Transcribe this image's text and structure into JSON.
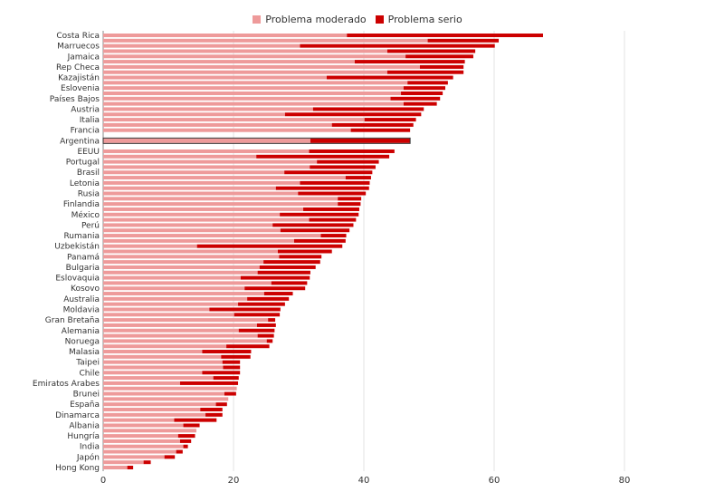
{
  "chart_data": {
    "type": "bar",
    "orientation": "horizontal",
    "stacked": true,
    "title": "",
    "xlabel": "",
    "ylabel": "",
    "xlim": [
      0,
      80
    ],
    "xticks": [
      0,
      20,
      40,
      60,
      80
    ],
    "grid": true,
    "legend_placement": "top-center",
    "highlighted_category": "Argentina",
    "categories": [
      "Costa Rica",
      "",
      "Marruecos",
      "",
      "Jamaica",
      "",
      "Rep Checa",
      "",
      "Kazajistán",
      "",
      "Eslovenia",
      "",
      "Países Bajos",
      "",
      "Austria",
      "",
      "Italia",
      "",
      "Francia",
      "Argentina",
      "EEUU",
      "",
      "Portugal",
      "",
      "Brasil",
      "",
      "Letonia",
      "",
      "Rusia",
      "",
      "Finlandia",
      "",
      "México",
      "",
      "Perú",
      "",
      "Rumania",
      "",
      "Uzbekistán",
      "",
      "Panamá",
      "",
      "Bulgaria",
      "",
      "Eslovaquia",
      "",
      "Kosovo",
      "",
      "Australia",
      "",
      "Moldavia",
      "",
      "Gran Bretaña",
      "",
      "Alemania",
      "",
      "Noruega",
      "",
      "Malasia",
      "",
      "Taipei",
      "",
      "Chile",
      "",
      "Emiratos Arabes",
      "",
      "Brunei",
      "",
      "España",
      "",
      "Dinamarca",
      "",
      "Albania",
      "",
      "Hungría",
      "",
      "India",
      "",
      "Japón",
      "",
      "Hong Kong"
    ],
    "series": [
      {
        "name": "Problema moderado",
        "color": "#ee9a9a",
        "values": [
          37.4,
          49.8,
          30.2,
          43.6,
          46.4,
          38.6,
          48.6,
          43.6,
          34.3,
          46.7,
          46.1,
          45.7,
          44.1,
          46.1,
          32.2,
          27.9,
          40.1,
          35.1,
          38.0,
          31.8,
          31.6,
          23.5,
          32.8,
          31.7,
          27.8,
          37.2,
          30.2,
          26.5,
          29.9,
          36.0,
          36.0,
          30.7,
          27.1,
          31.6,
          26.0,
          27.2,
          33.4,
          29.3,
          14.4,
          26.8,
          27.0,
          24.6,
          24.0,
          23.7,
          21.1,
          25.8,
          21.7,
          24.7,
          22.1,
          20.7,
          16.3,
          20.1,
          25.3,
          23.6,
          20.8,
          23.7,
          25.1,
          18.9,
          15.2,
          18.1,
          18.3,
          18.4,
          15.2,
          16.9,
          11.8,
          20.5,
          18.6,
          19.2,
          17.3,
          14.9,
          15.7,
          10.9,
          12.3,
          14.3,
          11.5,
          11.8,
          12.3,
          11.2,
          9.4,
          6.2,
          3.7
        ]
      },
      {
        "name": "Problema serio",
        "color": "#cc0000",
        "values": [
          30.1,
          10.9,
          29.9,
          13.5,
          10.4,
          16.9,
          6.7,
          11.7,
          19.4,
          6.2,
          6.4,
          6.4,
          7.6,
          5.1,
          17.0,
          20.9,
          7.9,
          12.5,
          9.1,
          15.3,
          13.1,
          20.4,
          9.5,
          10.1,
          13.5,
          3.9,
          10.7,
          14.3,
          10.4,
          3.6,
          3.5,
          8.6,
          12.1,
          7.2,
          12.4,
          10.6,
          3.9,
          7.9,
          22.3,
          8.3,
          6.5,
          8.7,
          8.6,
          8.1,
          10.6,
          5.5,
          9.3,
          4.4,
          6.4,
          7.2,
          10.9,
          7.0,
          1.1,
          2.9,
          5.5,
          2.5,
          0.9,
          6.6,
          7.5,
          4.5,
          2.7,
          2.6,
          5.8,
          3.9,
          8.9,
          0,
          1.8,
          0,
          1.7,
          3.4,
          2.6,
          6.5,
          2.5,
          0,
          2.6,
          1.7,
          0.7,
          1.0,
          1.6,
          1.1,
          0.9
        ]
      }
    ]
  }
}
